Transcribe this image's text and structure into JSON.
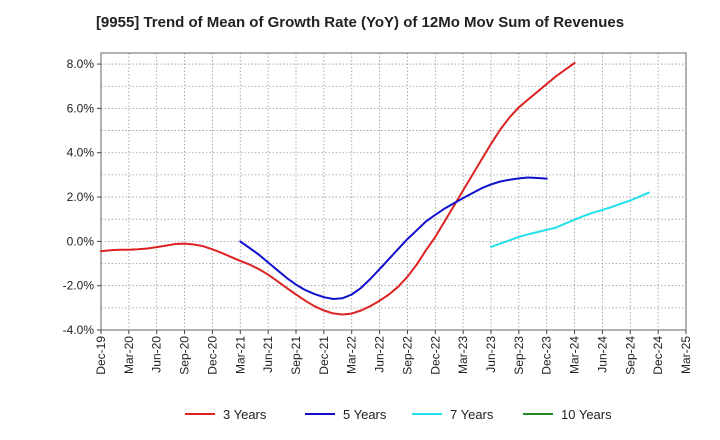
{
  "chart_data": {
    "type": "line",
    "title": "[9955]  Trend of Mean of Growth Rate (YoY) of 12Mo Mov Sum of Revenues",
    "xlabel": "",
    "ylabel": "",
    "ylim": [
      -4.0,
      8.5
    ],
    "y_ticks": [
      -4.0,
      -2.0,
      0.0,
      2.0,
      4.0,
      6.0,
      8.0
    ],
    "y_tick_labels": [
      "-4.0%",
      "-2.0%",
      "0.0%",
      "2.0%",
      "4.0%",
      "6.0%",
      "8.0%"
    ],
    "x_tick_labels": [
      "Dec-19",
      "Mar-20",
      "Jun-20",
      "Sep-20",
      "Dec-20",
      "Mar-21",
      "Jun-21",
      "Sep-21",
      "Dec-21",
      "Mar-22",
      "Jun-22",
      "Sep-22",
      "Dec-22",
      "Mar-23",
      "Jun-23",
      "Sep-23",
      "Dec-23",
      "Mar-24",
      "Jun-24",
      "Sep-24",
      "Dec-24",
      "Mar-25"
    ],
    "grid": true,
    "legend_position": "bottom",
    "series": [
      {
        "name": "3 Years",
        "color": "#dd2222",
        "start_index": 0,
        "values": [
          -0.45,
          -0.4,
          -0.38,
          -0.38,
          -0.36,
          -0.32,
          -0.26,
          -0.19,
          -0.12,
          -0.1,
          -0.14,
          -0.22,
          -0.36,
          -0.52,
          -0.7,
          -0.88,
          -1.05,
          -1.25,
          -1.5,
          -1.8,
          -2.1,
          -2.4,
          -2.68,
          -2.93,
          -3.12,
          -3.25,
          -3.3,
          -3.26,
          -3.12,
          -2.92,
          -2.68,
          -2.4,
          -2.05,
          -1.6,
          -1.05,
          -0.4,
          0.2,
          0.9,
          1.6,
          2.3,
          3.0,
          3.7,
          4.4,
          5.05,
          5.6,
          6.05,
          6.4,
          6.75,
          7.1,
          7.45,
          7.75,
          8.05
        ]
      },
      {
        "name": "5 Years",
        "color": "#1111cc",
        "start_index": 15,
        "values": [
          0.0,
          -0.3,
          -0.6,
          -0.95,
          -1.3,
          -1.65,
          -1.95,
          -2.2,
          -2.38,
          -2.52,
          -2.6,
          -2.57,
          -2.4,
          -2.1,
          -1.7,
          -1.25,
          -0.8,
          -0.35,
          0.1,
          0.5,
          0.9,
          1.2,
          1.48,
          1.72,
          1.95,
          2.18,
          2.4,
          2.57,
          2.7,
          2.78,
          2.84,
          2.88,
          2.86,
          2.83
        ]
      },
      {
        "name": "7 Years",
        "color": "#22e0e8",
        "start_index": 42,
        "values": [
          -0.25,
          -0.1,
          0.05,
          0.2,
          0.32,
          0.42,
          0.52,
          0.62,
          0.8,
          0.98,
          1.15,
          1.3,
          1.42,
          1.55,
          1.7,
          1.85,
          2.02,
          2.2
        ]
      },
      {
        "name": "10 Years",
        "color": "#228822",
        "start_index": 0,
        "values": []
      }
    ]
  }
}
